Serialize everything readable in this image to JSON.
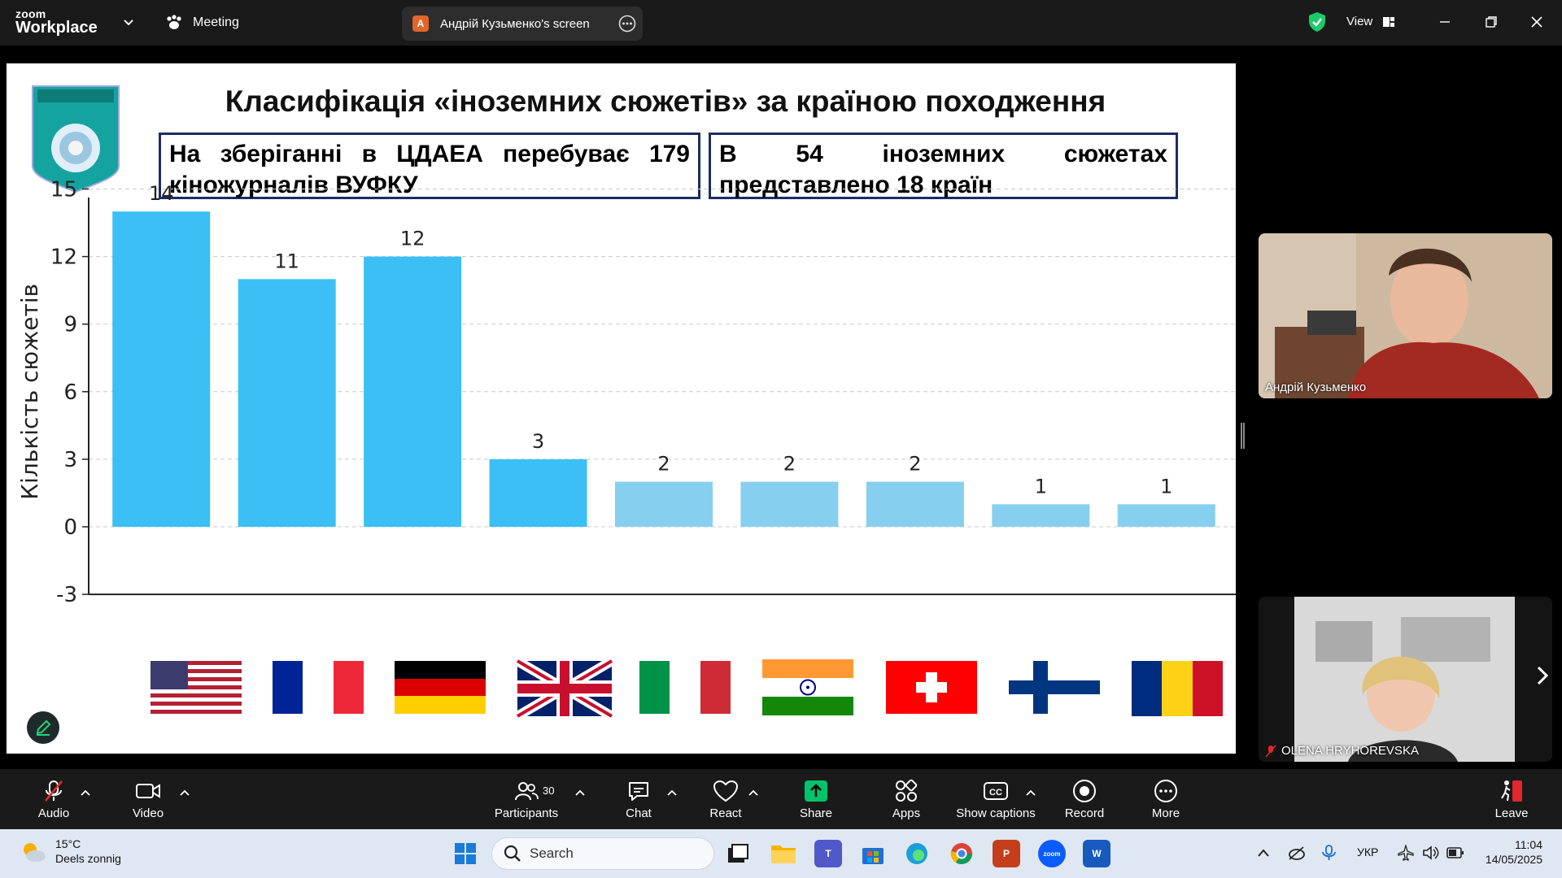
{
  "app": {
    "logo_line1": "zoom",
    "logo_line2": "Workplace",
    "meeting_label": "Meeting",
    "screen_owner_initial": "A",
    "screen_share_label": "Андрій Кузьменко's screen",
    "view_label": "View"
  },
  "slide": {
    "title": "Класифікація «іноземних сюжетів» за країною походження",
    "box1_text": "На зберіганні в ЦДАЕА перебуває 179 кіножурналів ВУФКУ",
    "box2_text": "В 54 іноземних сюжетах представлено 18 країн"
  },
  "chart_data": {
    "type": "bar",
    "title": "",
    "xlabel": "",
    "ylabel": "Кількість сюжетів",
    "ylim": [
      -3,
      15.5
    ],
    "yticks": [
      -3,
      0,
      3,
      6,
      9,
      12,
      15
    ],
    "grid": "horizontal dashed",
    "categories": [
      "USA",
      "France",
      "Germany",
      "United Kingdom",
      "Italy",
      "India",
      "Switzerland",
      "Finland",
      "Romania"
    ],
    "category_display": "flag icons",
    "values": [
      14,
      11,
      12,
      3,
      2,
      2,
      2,
      1,
      1
    ],
    "bar_colors": [
      "#3bbff5",
      "#3bbff5",
      "#3bbff5",
      "#3bbff5",
      "#87cfee",
      "#87cfee",
      "#87cfee",
      "#87cfee",
      "#87cfee"
    ],
    "data_labels": [
      "14",
      "11",
      "12",
      "3",
      "2",
      "2",
      "2",
      "1",
      "1"
    ]
  },
  "participants_panel": {
    "tile1_name": "Андрій Кузьменко",
    "tile2_name": "OLENA HRYHOREVSKA"
  },
  "toolbar": {
    "audio": "Audio",
    "video": "Video",
    "participants": "Participants",
    "participants_count": "30",
    "chat": "Chat",
    "react": "React",
    "share": "Share",
    "apps": "Apps",
    "captions": "Show captions",
    "record": "Record",
    "more": "More",
    "leave": "Leave"
  },
  "taskbar": {
    "temperature": "15°C",
    "weather_text": "Deels zonnig",
    "search_placeholder": "Search",
    "language": "УКР",
    "time": "11:04",
    "date": "14/05/2025"
  },
  "colors": {
    "bar_primary": "#3bbff5",
    "bar_secondary": "#87cfee",
    "share_green": "#00c36b",
    "leave_red": "#e0282e",
    "box_border": "#1c2c63"
  }
}
